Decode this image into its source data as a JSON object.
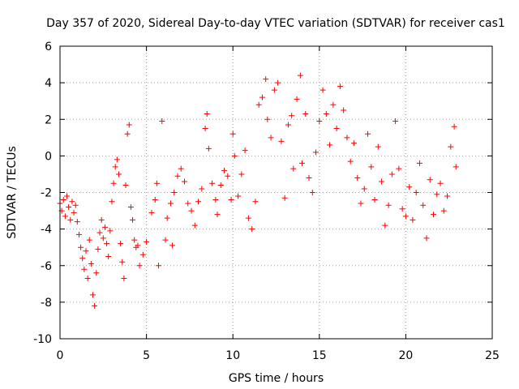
{
  "chart_data": {
    "type": "scatter",
    "title": "Day 357 of 2020, Sidereal Day-to-day VTEC variation (SDTVAR) for receiver cas1",
    "xlabel": "GPS time / hours",
    "ylabel": "SDTVAR / TECUs",
    "xlim": [
      0,
      25
    ],
    "ylim": [
      -10,
      6
    ],
    "xticks": [
      0,
      5,
      10,
      15,
      20,
      25
    ],
    "yticks": [
      -10,
      -8,
      -6,
      -4,
      -2,
      0,
      2,
      4,
      6
    ],
    "xtick_labels": [
      "0",
      "5",
      "10",
      "15",
      "20",
      "25"
    ],
    "ytick_labels": [
      "-10",
      "-8",
      "-6",
      "-4",
      "-2",
      "0",
      "2",
      "4",
      "6"
    ],
    "grid": true,
    "marker": "+",
    "color": "#ff0000",
    "series": [
      {
        "name": "SDTVAR",
        "points": [
          [
            0.0,
            -2.6
          ],
          [
            0.1,
            -3.0
          ],
          [
            0.2,
            -2.4
          ],
          [
            0.3,
            -3.3
          ],
          [
            0.4,
            -2.2
          ],
          [
            0.5,
            -2.8
          ],
          [
            0.6,
            -3.5
          ],
          [
            0.7,
            -2.5
          ],
          [
            0.8,
            -3.1
          ],
          [
            0.9,
            -2.7
          ],
          [
            1.0,
            -3.6
          ],
          [
            1.1,
            -4.3
          ],
          [
            1.2,
            -5.0
          ],
          [
            1.3,
            -5.6
          ],
          [
            1.4,
            -6.2
          ],
          [
            1.5,
            -5.2
          ],
          [
            1.6,
            -6.7
          ],
          [
            1.7,
            -4.6
          ],
          [
            1.8,
            -5.9
          ],
          [
            1.9,
            -7.6
          ],
          [
            2.0,
            -8.2
          ],
          [
            2.1,
            -6.4
          ],
          [
            2.2,
            -5.1
          ],
          [
            2.3,
            -4.2
          ],
          [
            2.4,
            -3.5
          ],
          [
            2.5,
            -4.5
          ],
          [
            2.6,
            -3.9
          ],
          [
            2.7,
            -4.8
          ],
          [
            2.8,
            -5.5
          ],
          [
            2.9,
            -4.1
          ],
          [
            3.0,
            -2.5
          ],
          [
            3.1,
            -1.5
          ],
          [
            3.2,
            -0.6
          ],
          [
            3.3,
            -0.2
          ],
          [
            3.4,
            -1.0
          ],
          [
            3.5,
            -4.8
          ],
          [
            3.6,
            -5.8
          ],
          [
            3.7,
            -6.7
          ],
          [
            3.8,
            -1.6
          ],
          [
            3.9,
            1.2
          ],
          [
            4.0,
            1.7
          ],
          [
            4.1,
            -2.8
          ],
          [
            4.2,
            -3.5
          ],
          [
            4.3,
            -4.6
          ],
          [
            4.4,
            -5.0
          ],
          [
            4.5,
            -4.9
          ],
          [
            4.6,
            -6.0
          ],
          [
            4.8,
            -5.4
          ],
          [
            5.0,
            -4.7
          ],
          [
            5.3,
            -3.1
          ],
          [
            5.5,
            -2.4
          ],
          [
            5.6,
            -1.5
          ],
          [
            5.7,
            -6.0
          ],
          [
            5.9,
            1.9
          ],
          [
            6.1,
            -4.6
          ],
          [
            6.2,
            -3.4
          ],
          [
            6.4,
            -2.6
          ],
          [
            6.5,
            -4.9
          ],
          [
            6.6,
            -2.0
          ],
          [
            6.8,
            -1.1
          ],
          [
            7.0,
            -0.7
          ],
          [
            7.2,
            -1.4
          ],
          [
            7.4,
            -2.6
          ],
          [
            7.6,
            -3.0
          ],
          [
            7.8,
            -3.8
          ],
          [
            8.0,
            -2.5
          ],
          [
            8.2,
            -1.8
          ],
          [
            8.4,
            1.5
          ],
          [
            8.5,
            2.3
          ],
          [
            8.6,
            0.4
          ],
          [
            8.8,
            -1.5
          ],
          [
            9.0,
            -2.4
          ],
          [
            9.1,
            -3.2
          ],
          [
            9.3,
            -1.6
          ],
          [
            9.5,
            -0.8
          ],
          [
            9.7,
            -1.1
          ],
          [
            9.9,
            -2.4
          ],
          [
            10.0,
            1.2
          ],
          [
            10.1,
            0.0
          ],
          [
            10.3,
            -2.2
          ],
          [
            10.5,
            -1.0
          ],
          [
            10.7,
            0.3
          ],
          [
            10.9,
            -3.4
          ],
          [
            11.1,
            -4.0
          ],
          [
            11.3,
            -2.5
          ],
          [
            11.5,
            2.8
          ],
          [
            11.7,
            3.2
          ],
          [
            11.9,
            4.2
          ],
          [
            12.0,
            2.0
          ],
          [
            12.2,
            1.0
          ],
          [
            12.4,
            3.6
          ],
          [
            12.6,
            4.0
          ],
          [
            12.8,
            0.8
          ],
          [
            13.0,
            -2.3
          ],
          [
            13.2,
            1.7
          ],
          [
            13.4,
            2.2
          ],
          [
            13.5,
            -0.7
          ],
          [
            13.7,
            3.1
          ],
          [
            13.9,
            4.4
          ],
          [
            14.0,
            -0.4
          ],
          [
            14.2,
            2.3
          ],
          [
            14.4,
            -1.2
          ],
          [
            14.6,
            -2.0
          ],
          [
            14.8,
            0.2
          ],
          [
            15.0,
            1.9
          ],
          [
            15.2,
            3.6
          ],
          [
            15.4,
            2.3
          ],
          [
            15.6,
            0.6
          ],
          [
            15.8,
            2.8
          ],
          [
            16.0,
            1.5
          ],
          [
            16.2,
            3.8
          ],
          [
            16.4,
            2.5
          ],
          [
            16.6,
            1.0
          ],
          [
            16.8,
            -0.3
          ],
          [
            17.0,
            0.7
          ],
          [
            17.2,
            -1.2
          ],
          [
            17.4,
            -2.6
          ],
          [
            17.6,
            -1.8
          ],
          [
            17.8,
            1.2
          ],
          [
            18.0,
            -0.6
          ],
          [
            18.2,
            -2.4
          ],
          [
            18.4,
            0.5
          ],
          [
            18.6,
            -1.4
          ],
          [
            18.8,
            -3.8
          ],
          [
            19.0,
            -2.7
          ],
          [
            19.2,
            -1.0
          ],
          [
            19.4,
            1.9
          ],
          [
            19.6,
            -0.7
          ],
          [
            19.8,
            -2.9
          ],
          [
            20.0,
            -3.3
          ],
          [
            20.2,
            -1.7
          ],
          [
            20.4,
            -3.5
          ],
          [
            20.6,
            -2.0
          ],
          [
            20.8,
            -0.4
          ],
          [
            21.0,
            -2.7
          ],
          [
            21.2,
            -4.5
          ],
          [
            21.4,
            -1.3
          ],
          [
            21.6,
            -3.2
          ],
          [
            21.8,
            -2.1
          ],
          [
            22.0,
            -1.5
          ],
          [
            22.2,
            -3.0
          ],
          [
            22.4,
            -2.2
          ],
          [
            22.6,
            0.5
          ],
          [
            22.8,
            1.6
          ],
          [
            22.9,
            -0.6
          ]
        ]
      }
    ]
  }
}
